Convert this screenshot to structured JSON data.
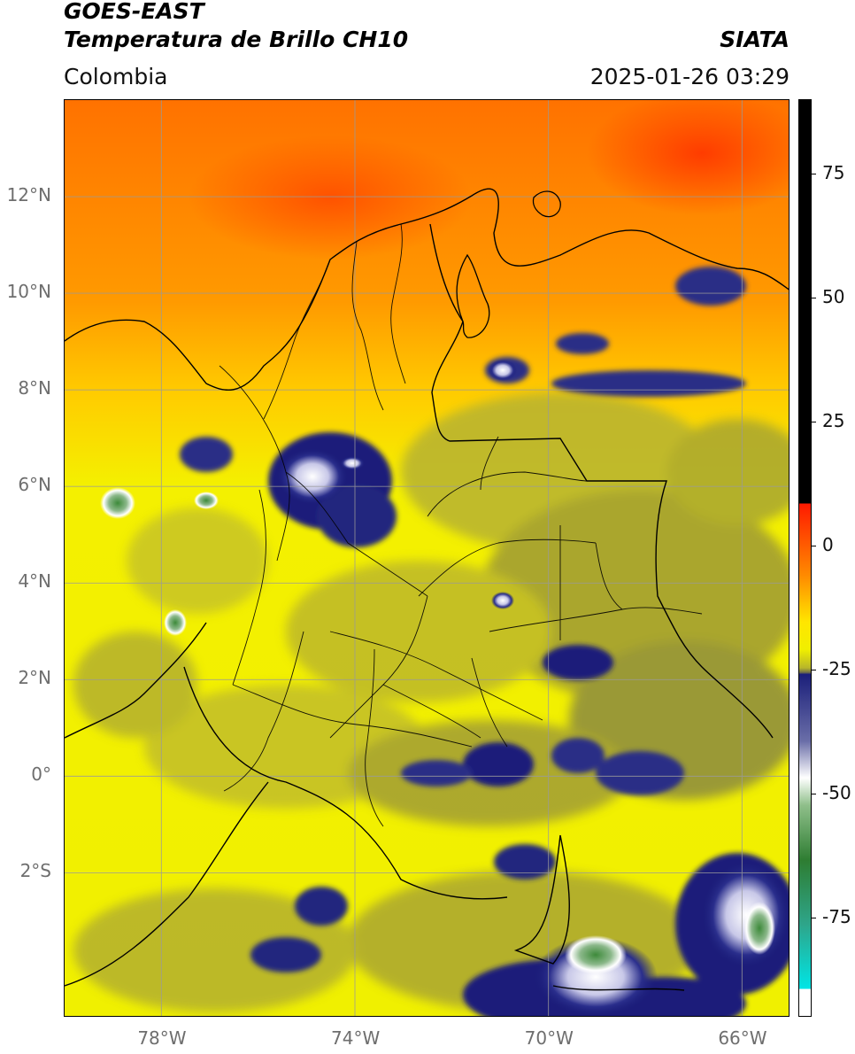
{
  "header": {
    "satellite": "GOES-EAST",
    "product": "Temperatura de Brillo CH10",
    "region": "Colombia",
    "source": "SIATA",
    "timestamp": "2025-01-26 03:29"
  },
  "map": {
    "lon_range": [
      -80,
      -65
    ],
    "lat_range": [
      -5,
      14
    ],
    "lat_ticks": [
      {
        "value": 12,
        "label": "12°N"
      },
      {
        "value": 10,
        "label": "10°N"
      },
      {
        "value": 8,
        "label": "8°N"
      },
      {
        "value": 6,
        "label": "6°N"
      },
      {
        "value": 4,
        "label": "4°N"
      },
      {
        "value": 2,
        "label": "2°N"
      },
      {
        "value": 0,
        "label": "0°"
      },
      {
        "value": -2,
        "label": "2°S"
      }
    ],
    "lon_ticks": [
      {
        "value": -78,
        "label": "78°W"
      },
      {
        "value": -74,
        "label": "74°W"
      },
      {
        "value": -70,
        "label": "70°W"
      },
      {
        "value": -66,
        "label": "66°W"
      }
    ],
    "grid": true,
    "colors": {
      "warm": "#ff7a00",
      "hot": "#ff4a00",
      "yellow": "#eef000",
      "olive": "#a8a62c",
      "dark_olive": "#6d6d44",
      "navy": "#1b1f7a",
      "white": "#ffffff",
      "green": "#2e7d32"
    }
  },
  "colorbar": {
    "range": [
      -95,
      90
    ],
    "ticks": [
      {
        "value": 75,
        "label": "75"
      },
      {
        "value": 50,
        "label": "50"
      },
      {
        "value": 25,
        "label": "25"
      },
      {
        "value": 0,
        "label": "0"
      },
      {
        "value": -25,
        "label": "-25"
      },
      {
        "value": -50,
        "label": "-50"
      },
      {
        "value": -75,
        "label": "-75"
      }
    ]
  }
}
